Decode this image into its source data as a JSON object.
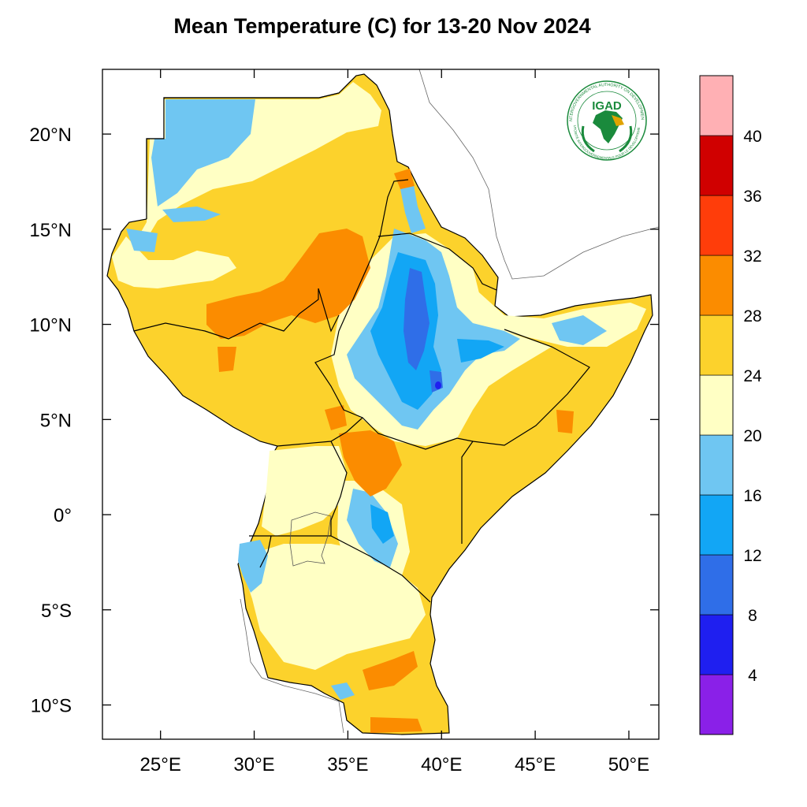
{
  "title": "Mean Temperature (C) for 13-20 Nov 2024",
  "logo": {
    "text": "IGAD",
    "ring_top": "INTERGOVERNMENTAL AUTHORITY ON DEVELOPMENT",
    "ring_bottom": "AUTORITÉ INTERGOUVERNEMENTALE POUR LE DÉVELOPPEMENT",
    "color": "#1a8a3c"
  },
  "map": {
    "lon_range": [
      21.9,
      51.6
    ],
    "lat_range": [
      -11.8,
      23.4
    ],
    "lon_ticks": [
      {
        "value": 25,
        "label": "25°E"
      },
      {
        "value": 30,
        "label": "30°E"
      },
      {
        "value": 35,
        "label": "35°E"
      },
      {
        "value": 40,
        "label": "40°E"
      },
      {
        "value": 45,
        "label": "45°E"
      },
      {
        "value": 50,
        "label": "50°E"
      }
    ],
    "lat_ticks": [
      {
        "value": 20,
        "label": "20°N"
      },
      {
        "value": 15,
        "label": "15°N"
      },
      {
        "value": 10,
        "label": "10°N"
      },
      {
        "value": 5,
        "label": "5°N"
      },
      {
        "value": 0,
        "label": "0°"
      },
      {
        "value": -5,
        "label": "5°S"
      },
      {
        "value": -10,
        "label": "10°S"
      }
    ]
  },
  "colorbar": {
    "unit": "C",
    "bins": [
      {
        "range": "< 4",
        "color": "#8a20e8"
      },
      {
        "range": "4-8",
        "color": "#1f1ff0"
      },
      {
        "range": "8-12",
        "color": "#2f6ee8"
      },
      {
        "range": "12-16",
        "color": "#12a6f5"
      },
      {
        "range": "16-20",
        "color": "#6fc6f2"
      },
      {
        "range": "20-24",
        "color": "#ffffc4"
      },
      {
        "range": "24-28",
        "color": "#fcd22c"
      },
      {
        "range": "28-32",
        "color": "#fb8c00"
      },
      {
        "range": "32-36",
        "color": "#ff3d0a"
      },
      {
        "range": "36-40",
        "color": "#d00000"
      },
      {
        "range": "> 40",
        "color": "#ffb0b4"
      }
    ],
    "labels": [
      "4",
      "8",
      "12",
      "16",
      "20",
      "24",
      "28",
      "32",
      "36",
      "40"
    ]
  }
}
